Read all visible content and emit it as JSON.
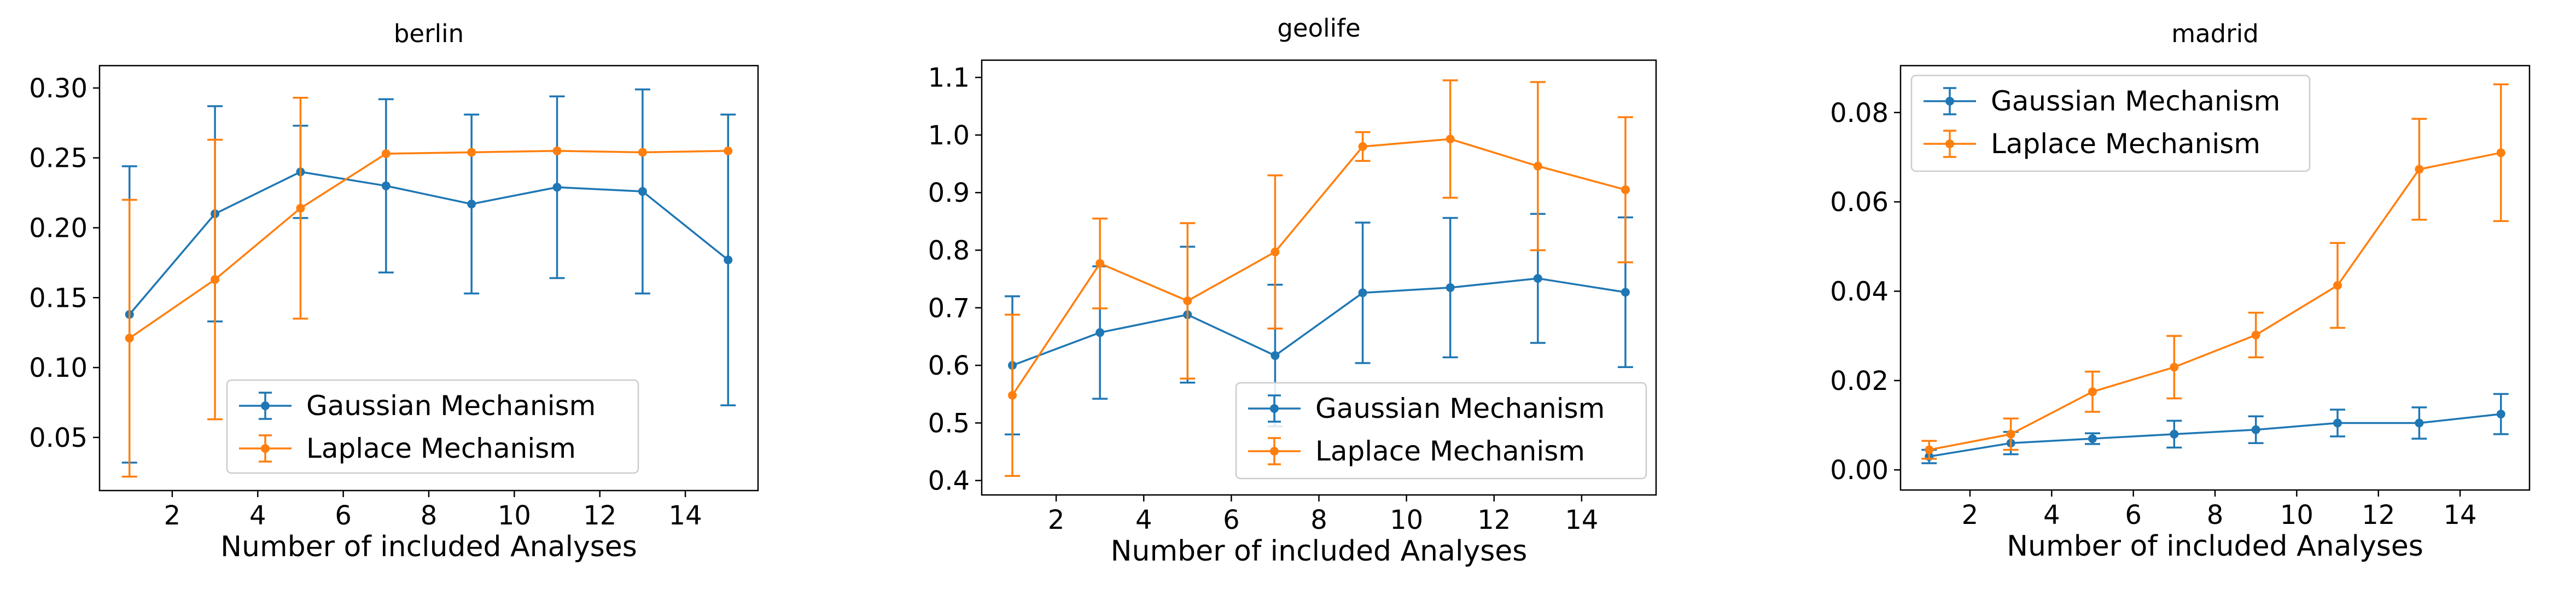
{
  "chart_data": [
    {
      "type": "line",
      "title": "berlin",
      "xlabel": "Number of included Analyses",
      "ylabel": "",
      "x": [
        1,
        3,
        5,
        7,
        9,
        11,
        13,
        15
      ],
      "xticks": [
        2,
        4,
        6,
        8,
        10,
        12,
        14
      ],
      "xtick_labels": [
        "2",
        "4",
        "6",
        "8",
        "10",
        "12",
        "14"
      ],
      "yticks": [
        0.05,
        0.1,
        0.15,
        0.2,
        0.25,
        0.3
      ],
      "ytick_labels": [
        "0.05",
        "0.10",
        "0.15",
        "0.20",
        "0.25",
        "0.30"
      ],
      "xlim": [
        0.3,
        15.7
      ],
      "ylim": [
        0.012,
        0.316
      ],
      "legend_loc": "lower-right",
      "series": [
        {
          "name": "Gaussian Mechanism",
          "color": "#1f77b4",
          "values": [
            0.138,
            0.21,
            0.24,
            0.23,
            0.217,
            0.229,
            0.226,
            0.177
          ],
          "err": [
            0.106,
            0.077,
            0.033,
            0.062,
            0.064,
            0.065,
            0.073,
            0.104
          ]
        },
        {
          "name": "Laplace Mechanism",
          "color": "#ff7f0e",
          "values": [
            0.121,
            0.163,
            0.214,
            0.253,
            0.254,
            0.255,
            0.254,
            0.255
          ],
          "err": [
            0.099,
            0.1,
            0.079,
            0.0,
            0.0,
            0.0,
            0.0,
            0.0
          ]
        }
      ]
    },
    {
      "type": "line",
      "title": "geolife",
      "xlabel": "Number of included Analyses",
      "ylabel": "",
      "x": [
        1,
        3,
        5,
        7,
        9,
        11,
        13,
        15
      ],
      "xticks": [
        2,
        4,
        6,
        8,
        10,
        12,
        14
      ],
      "xtick_labels": [
        "2",
        "4",
        "6",
        "8",
        "10",
        "12",
        "14"
      ],
      "yticks": [
        0.4,
        0.5,
        0.6,
        0.7,
        0.8,
        0.9,
        1.0,
        1.1
      ],
      "ytick_labels": [
        "0.4",
        "0.5",
        "0.6",
        "0.7",
        "0.8",
        "0.9",
        "1.0",
        "1.1"
      ],
      "xlim": [
        0.3,
        15.7
      ],
      "ylim": [
        0.375,
        1.13
      ],
      "legend_loc": "lower-right",
      "series": [
        {
          "name": "Gaussian Mechanism",
          "color": "#1f77b4",
          "values": [
            0.6,
            0.657,
            0.688,
            0.617,
            0.726,
            0.735,
            0.751,
            0.727
          ],
          "err": [
            0.12,
            0.115,
            0.118,
            0.123,
            0.122,
            0.121,
            0.112,
            0.13
          ]
        },
        {
          "name": "Laplace Mechanism",
          "color": "#ff7f0e",
          "values": [
            0.548,
            0.777,
            0.712,
            0.797,
            0.98,
            0.993,
            0.946,
            0.905
          ],
          "err": [
            0.14,
            0.078,
            0.135,
            0.133,
            0.025,
            0.102,
            0.146,
            0.126
          ]
        }
      ]
    },
    {
      "type": "line",
      "title": "madrid",
      "xlabel": "Number of included Analyses",
      "ylabel": "",
      "x": [
        1,
        3,
        5,
        7,
        9,
        11,
        13,
        15
      ],
      "xticks": [
        2,
        4,
        6,
        8,
        10,
        12,
        14
      ],
      "xtick_labels": [
        "2",
        "4",
        "6",
        "8",
        "10",
        "12",
        "14"
      ],
      "yticks": [
        0.0,
        0.02,
        0.04,
        0.06,
        0.08
      ],
      "ytick_labels": [
        "0.00",
        "0.02",
        "0.04",
        "0.06",
        "0.08"
      ],
      "xlim": [
        0.3,
        15.7
      ],
      "ylim": [
        -0.0045,
        0.0905
      ],
      "legend_loc": "upper-left",
      "series": [
        {
          "name": "Gaussian Mechanism",
          "color": "#1f77b4",
          "values": [
            0.003,
            0.006,
            0.007,
            0.008,
            0.009,
            0.0105,
            0.0105,
            0.0125
          ],
          "err": [
            0.0015,
            0.0025,
            0.0012,
            0.003,
            0.003,
            0.003,
            0.0035,
            0.0045
          ]
        },
        {
          "name": "Laplace Mechanism",
          "color": "#ff7f0e",
          "values": [
            0.0045,
            0.008,
            0.0175,
            0.023,
            0.0302,
            0.0413,
            0.0673,
            0.071
          ],
          "err": [
            0.002,
            0.0035,
            0.0045,
            0.007,
            0.005,
            0.0095,
            0.0113,
            0.0153
          ]
        }
      ]
    }
  ]
}
